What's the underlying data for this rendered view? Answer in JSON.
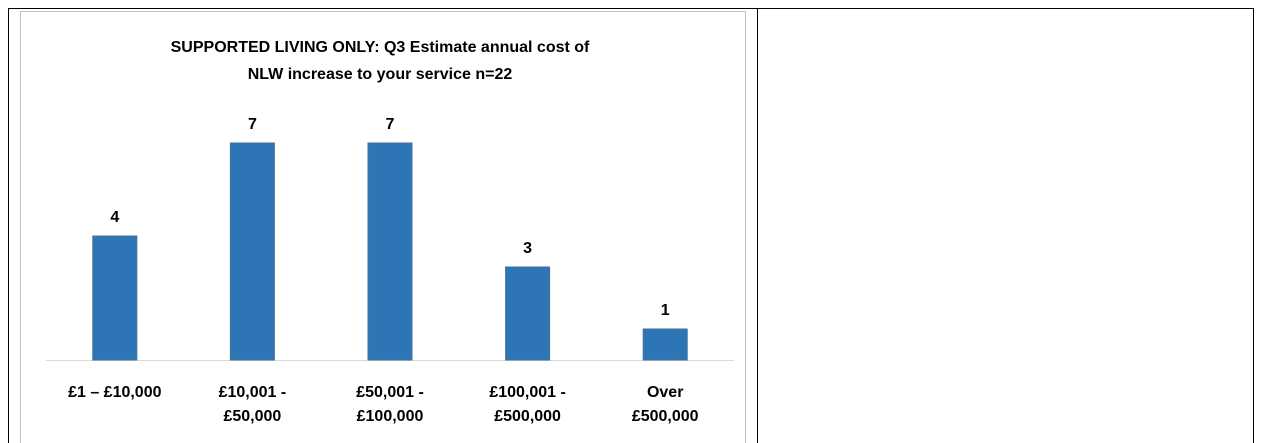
{
  "chart_data": {
    "type": "bar",
    "title": "SUPPORTED LIVING ONLY:  Q3 Estimate annual cost of\nNLW increase to your service n=22",
    "categories": [
      "£1 – £10,000",
      "£10,001 -\n£50,000",
      "£50,001 -\n£100,000",
      "£100,001 -\n£500,000",
      "Over\n£500,000"
    ],
    "values": [
      4,
      7,
      7,
      3,
      1
    ],
    "color": "#2e75b6"
  }
}
